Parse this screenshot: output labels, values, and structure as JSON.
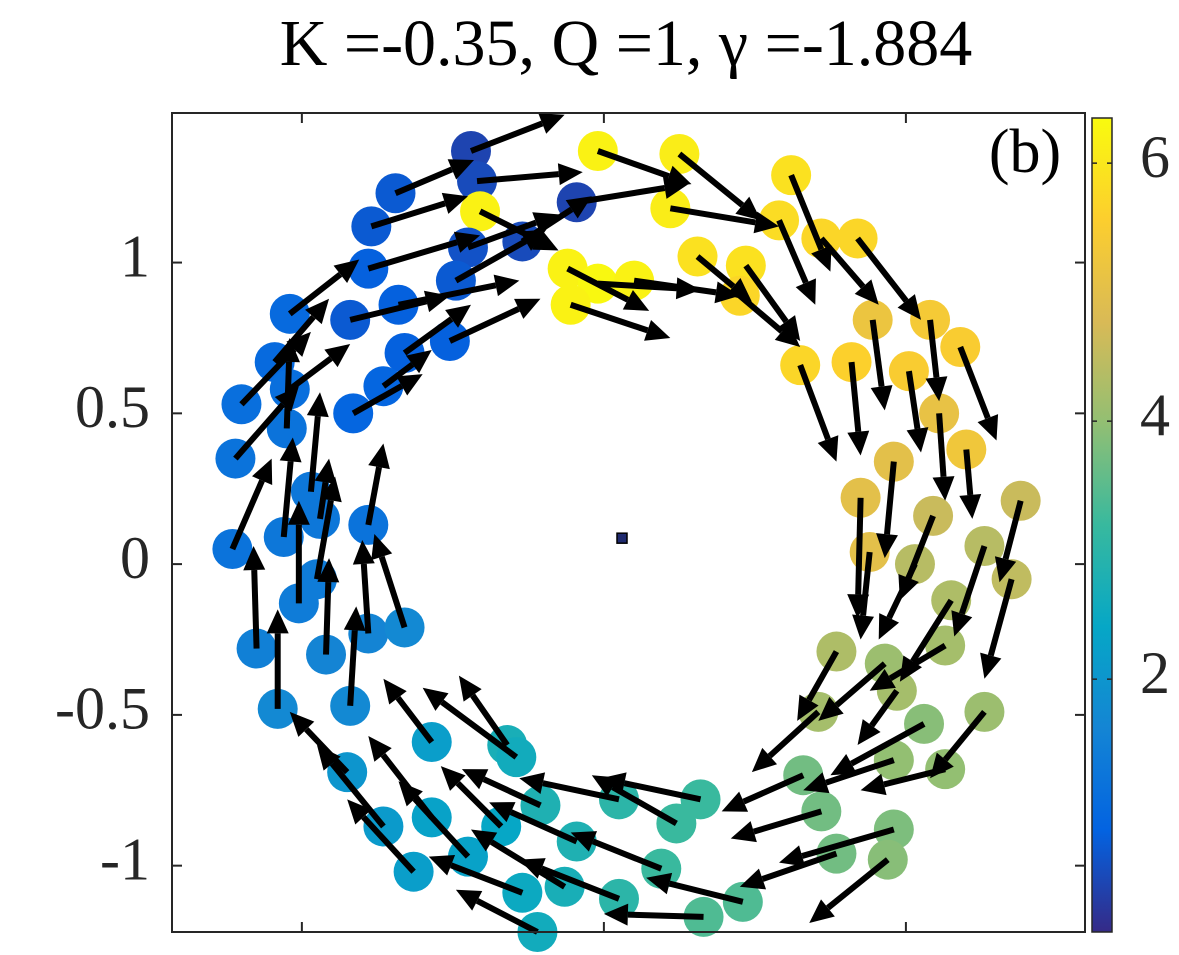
{
  "chart_data": {
    "type": "quiver",
    "title": "K =-0.35, Q =1, γ =-1.884",
    "annotation": "(b)",
    "xlim": [
      -1.43,
      1.593
    ],
    "ylim": [
      -1.22,
      1.496
    ],
    "xticks": [
      -1,
      0,
      1
    ],
    "yticks": [
      -1,
      -0.5,
      0,
      0.5,
      1
    ],
    "clim": [
      0.04,
      6.35
    ],
    "cticks": [
      2,
      4,
      6
    ],
    "colormap": [
      "#352a87",
      "#0363e1",
      "#1485d4",
      "#06a7c6",
      "#38b99e",
      "#92bf73",
      "#d9ba56",
      "#fcce2e",
      "#f9fb0e"
    ],
    "arrow_color": "#000000",
    "center_marker": {
      "x": 0.06,
      "y": 0.086,
      "color": "#1f2a6e"
    },
    "x": [
      -0.44,
      -0.69,
      -0.42,
      -0.09,
      -0.77,
      -0.41,
      -0.27,
      -0.78,
      -0.45,
      -1.04,
      -0.84,
      -0.68,
      -0.49,
      -1.09,
      -1.2,
      -0.66,
      -0.51,
      -1.04,
      -0.73,
      -0.83,
      -1.22,
      -1.05,
      -0.97,
      -1.06,
      -1.23,
      -0.78,
      -0.94,
      -1.01,
      -1.15,
      -0.95,
      -0.78,
      -0.66,
      -1.08,
      -0.92,
      -0.84,
      -0.85,
      -0.73,
      -0.63,
      -0.57,
      -0.57,
      -0.45,
      -0.34,
      -0.32,
      -0.29,
      -0.27,
      -0.22,
      -0.13,
      -0.09,
      -0.21,
      0.05,
      0.24,
      0.32,
      0.19,
      0.05,
      0.33,
      0.46,
      0.66,
      0.72,
      0.77,
      0.96,
      0.94,
      1.06,
      1.13,
      1.26,
      0.96,
      0.93,
      0.71,
      0.77,
      0.97,
      1.13,
      1.15,
      1.03,
      1.26,
      1.35,
      1.38,
      1.09,
      0.85,
      0.88,
      0.96,
      1.11,
      1.2,
      1.18,
      1.08,
      0.89,
      1.01,
      0.82,
      0.65,
      0.84,
      0.72,
      0.62,
      0.58,
      0.47,
      0.31,
      0.45,
      0.25,
      0.22,
      -0.02,
      -0.12,
      -0.02,
      0.1,
      -0.11
    ],
    "y": [
      1.37,
      1.23,
      1.27,
      1.2,
      1.12,
      1.17,
      1.07,
      0.98,
      1.05,
      0.83,
      0.81,
      0.86,
      0.94,
      0.67,
      0.53,
      0.7,
      0.74,
      0.58,
      0.59,
      0.5,
      0.35,
      0.45,
      0.24,
      0.09,
      0.05,
      0.13,
      0.15,
      -0.13,
      -0.28,
      -0.05,
      -0.23,
      -0.21,
      -0.48,
      -0.3,
      -0.47,
      -0.69,
      -0.87,
      -1.02,
      -0.59,
      -0.84,
      -0.97,
      -0.87,
      -0.6,
      -0.64,
      -1.09,
      -1.22,
      -1.07,
      -0.92,
      -0.8,
      -0.78,
      -0.86,
      -0.78,
      -1.01,
      -1.11,
      -1.17,
      -1.12,
      -0.7,
      -0.82,
      -0.96,
      -0.88,
      -0.98,
      -0.53,
      -0.68,
      -0.49,
      -0.65,
      -0.33,
      -0.49,
      -0.29,
      -0.42,
      -0.27,
      -0.12,
      0,
      0.06,
      -0.05,
      0.21,
      0.16,
      0.22,
      0.04,
      0.34,
      0.5,
      0.38,
      0.72,
      0.81,
      0.81,
      0.64,
      0.67,
      0.66,
      1.08,
      1.08,
      1.29,
      1.14,
      0.99,
      1.02,
      0.89,
      1.36,
      1.18,
      1.37,
      0.98,
      0.93,
      0.94,
      0.86
    ],
    "u": [
      0.31,
      0.26,
      0.35,
      0.37,
      0.32,
      0.26,
      0.23,
      0.37,
      0.3,
      0.23,
      0.33,
      0.4,
      0.3,
      0.18,
      0.23,
      0.22,
      0.3,
      0.2,
      0.16,
      0.23,
      0.21,
      0.01,
      0.03,
      0.03,
      0.13,
      0.05,
      0.03,
      0,
      -0.01,
      0.06,
      -0.02,
      -0.1,
      0,
      0.01,
      0.02,
      -0.19,
      -0.22,
      -0.22,
      -0.16,
      -0.21,
      -0.23,
      -0.2,
      -0.16,
      -0.31,
      -0.31,
      -0.27,
      -0.31,
      -0.29,
      -0.26,
      -0.33,
      -0.28,
      -0.33,
      -0.3,
      -0.33,
      -0.33,
      -0.32,
      -0.27,
      -0.3,
      -0.32,
      -0.38,
      -0.26,
      -0.31,
      -0.28,
      -0.18,
      -0.3,
      -0.22,
      -0.22,
      -0.13,
      -0.13,
      -0.25,
      -0.17,
      -0.12,
      -0.1,
      -0.09,
      -0.07,
      -0.11,
      -0.01,
      -0.03,
      -0.03,
      0.02,
      0.02,
      0.12,
      0.03,
      0.04,
      0.04,
      0.03,
      0.12,
      0.21,
      0.19,
      0.13,
      0.12,
      0.18,
      0.18,
      0.2,
      0.27,
      0.36,
      0.31,
      0.27,
      0.34,
      0.35,
      0.33
    ],
    "v": [
      0.12,
      0.11,
      0.03,
      0.06,
      0.1,
      -0.13,
      0.15,
      0.11,
      0.11,
      0.18,
      0.08,
      0.08,
      0.17,
      0.21,
      0.24,
      0.16,
      0.14,
      0.15,
      0.12,
      0.13,
      0.24,
      0.3,
      0.33,
      0.33,
      0.3,
      0.27,
      0.2,
      0.34,
      0.34,
      0.34,
      0.31,
      0.31,
      0.33,
      0.32,
      0.33,
      0.2,
      0.27,
      0.24,
      0.21,
      0.27,
      0.25,
      0.2,
      0.23,
      0.23,
      0.12,
      0.14,
      0.19,
      0.13,
      0.12,
      0.07,
      0.16,
      0.07,
      0.12,
      0.13,
      0.01,
      0.08,
      -0.12,
      -0.09,
      -0.11,
      -0.11,
      -0.21,
      -0.17,
      -0.07,
      -0.22,
      -0.1,
      -0.19,
      -0.2,
      -0.23,
      -0.18,
      -0.15,
      -0.27,
      -0.25,
      -0.3,
      -0.33,
      -0.27,
      -0.28,
      -0.4,
      -0.29,
      -0.32,
      -0.29,
      -0.23,
      -0.31,
      -0.27,
      -0.3,
      -0.27,
      -0.31,
      -0.32,
      -0.27,
      -0.22,
      -0.32,
      -0.28,
      -0.25,
      -0.15,
      -0.17,
      -0.22,
      -0.06,
      -0.11,
      -0.14,
      -0.02,
      -0.05,
      -0.11
    ],
    "c": [
      0.4,
      0.7,
      0.5,
      0.4,
      0.7,
      6.2,
      0.5,
      0.8,
      0.6,
      1.0,
      0.7,
      0.8,
      0.7,
      1.0,
      1.1,
      0.8,
      0.8,
      1.1,
      0.9,
      0.9,
      1.2,
      1.2,
      1.3,
      1.3,
      1.2,
      1.2,
      1.3,
      1.4,
      1.5,
      1.4,
      1.6,
      1.7,
      1.7,
      1.6,
      1.7,
      2.0,
      2.1,
      2.2,
      2.2,
      2.3,
      2.3,
      2.4,
      2.7,
      2.6,
      2.5,
      2.6,
      2.7,
      2.8,
      2.8,
      3.0,
      3.2,
      3.2,
      3.2,
      3.0,
      3.4,
      3.4,
      3.7,
      3.7,
      3.7,
      3.8,
      3.9,
      3.9,
      4.0,
      4.1,
      4.0,
      4.1,
      4.2,
      4.3,
      4.2,
      4.2,
      4.3,
      4.4,
      4.4,
      4.5,
      4.6,
      4.6,
      5.0,
      5.0,
      5.0,
      5.1,
      5.3,
      5.5,
      5.4,
      5.2,
      5.5,
      5.6,
      5.7,
      5.7,
      5.7,
      5.9,
      5.8,
      5.9,
      5.9,
      5.7,
      6.1,
      6.1,
      6.2,
      6.2,
      6.3,
      6.2,
      6.2
    ]
  }
}
